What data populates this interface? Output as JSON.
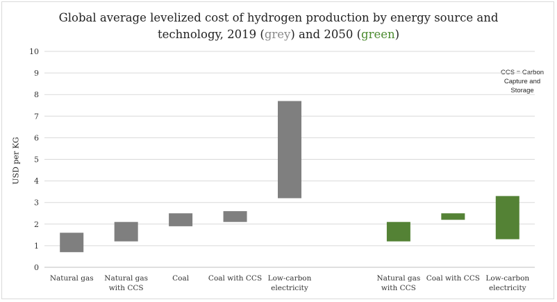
{
  "title": {
    "line1": "Global average levelized cost of hydrogen production by energy source and",
    "line2_prefix": "technology, 2019 (",
    "grey_word": "grey",
    "line2_mid": ") and 2050 (",
    "green_word": "green",
    "line2_suffix": ")"
  },
  "note": {
    "line1": "CCS = Carbon",
    "line2": "Capture and",
    "line3": "Storage"
  },
  "colors": {
    "grey": "#7f7f7f",
    "green": "#548235",
    "grid": "#d9d9d9",
    "axis": "#bfbfbf"
  },
  "chart_data": {
    "type": "bar",
    "subtype": "floating range bars",
    "title": "Global average levelized cost of hydrogen production by energy source and technology, 2019 (grey) and 2050 (green)",
    "ylabel": "USD per KG",
    "xlabel": "",
    "ylim": [
      0,
      10
    ],
    "yticks": [
      0,
      1,
      2,
      3,
      4,
      5,
      6,
      7,
      8,
      9,
      10
    ],
    "grid": true,
    "categories": [
      [
        "Natural gas"
      ],
      [
        "Natural gas",
        "with CCS"
      ],
      [
        "Coal"
      ],
      [
        "Coal with CCS"
      ],
      [
        "Low-carbon",
        "electricity"
      ],
      [],
      [
        "Natural gas",
        "with CCS"
      ],
      [
        "Coal with CCS"
      ],
      [
        "Low-carbon",
        "electricity"
      ]
    ],
    "series": [
      {
        "name": "2019",
        "color": "#7f7f7f",
        "ranges": [
          [
            0.7,
            1.6
          ],
          [
            1.2,
            2.1
          ],
          [
            1.9,
            2.5
          ],
          [
            2.1,
            2.6
          ],
          [
            3.2,
            7.7
          ],
          null,
          null,
          null,
          null
        ]
      },
      {
        "name": "2050",
        "color": "#548235",
        "ranges": [
          null,
          null,
          null,
          null,
          null,
          null,
          [
            1.2,
            2.1
          ],
          [
            2.2,
            2.5
          ],
          [
            1.3,
            3.3
          ]
        ]
      }
    ]
  }
}
